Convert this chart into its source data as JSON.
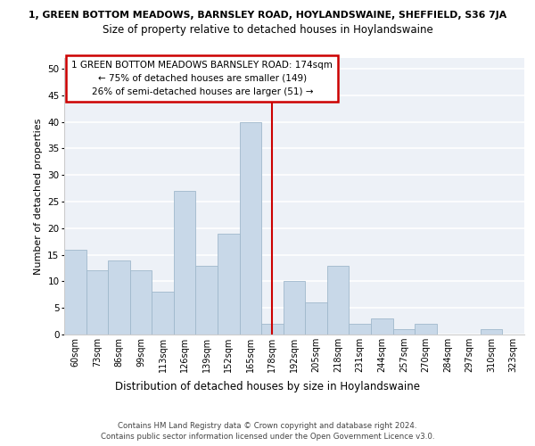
{
  "title_top": "1, GREEN BOTTOM MEADOWS, BARNSLEY ROAD, HOYLANDSWAINE, SHEFFIELD, S36 7JA",
  "title_main": "Size of property relative to detached houses in Hoylandswaine",
  "xlabel": "Distribution of detached houses by size in Hoylandswaine",
  "ylabel": "Number of detached properties",
  "bin_labels": [
    "60sqm",
    "73sqm",
    "86sqm",
    "99sqm",
    "113sqm",
    "126sqm",
    "139sqm",
    "152sqm",
    "165sqm",
    "178sqm",
    "192sqm",
    "205sqm",
    "218sqm",
    "231sqm",
    "244sqm",
    "257sqm",
    "270sqm",
    "284sqm",
    "297sqm",
    "310sqm",
    "323sqm"
  ],
  "bar_heights": [
    16,
    12,
    14,
    12,
    8,
    27,
    13,
    19,
    40,
    2,
    10,
    6,
    13,
    2,
    3,
    1,
    2,
    0,
    0,
    1,
    0
  ],
  "bar_color": "#c8d8e8",
  "bar_edgecolor": "#a0b8cc",
  "highlight_bar_index": 9,
  "highlight_color": "#cc0000",
  "annotation_line1": "1 GREEN BOTTOM MEADOWS BARNSLEY ROAD: 174sqm",
  "annotation_line2": "← 75% of detached houses are smaller (149)",
  "annotation_line3": "26% of semi-detached houses are larger (51) →",
  "annotation_box_color": "#cc0000",
  "footer1": "Contains HM Land Registry data © Crown copyright and database right 2024.",
  "footer2": "Contains public sector information licensed under the Open Government Licence v3.0.",
  "ylim": [
    0,
    52
  ],
  "yticks": [
    0,
    5,
    10,
    15,
    20,
    25,
    30,
    35,
    40,
    45,
    50
  ],
  "background_color": "#edf1f7"
}
